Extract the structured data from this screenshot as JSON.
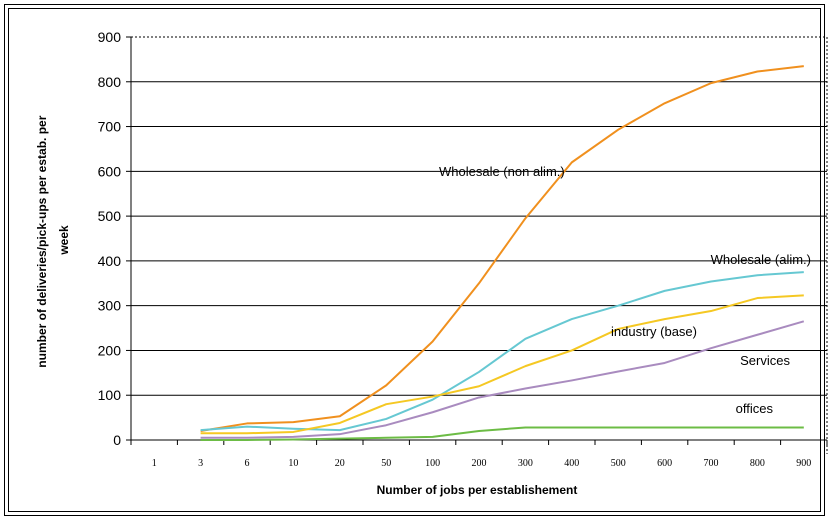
{
  "chart_data": {
    "type": "line",
    "xlabel": "Number of jobs per establishement",
    "ylabel": "number of deliveries/pick-ups per estab. per week",
    "ylabel_lines": [
      "number of deliveries/pick-ups per estab. per",
      "week"
    ],
    "ylim": [
      0,
      900
    ],
    "yticks": [
      "0",
      "100",
      "200",
      "300",
      "400",
      "500",
      "600",
      "700",
      "800",
      "900"
    ],
    "categories": [
      "1",
      "3",
      "6",
      "10",
      "20",
      "50",
      "100",
      "200",
      "300",
      "400",
      "500",
      "600",
      "700",
      "800",
      "900"
    ],
    "grid": "horizontal",
    "series": [
      {
        "name": "Wholesale (non alim.)",
        "color": "#f0901e",
        "values": [
          null,
          20,
          37,
          40,
          53,
          122,
          220,
          350,
          495,
          620,
          693,
          752,
          797,
          823,
          835
        ]
      },
      {
        "name": "Wholesale (alim.)",
        "color": "#66c8d2",
        "values": [
          null,
          22,
          30,
          25,
          22,
          47,
          90,
          152,
          226,
          270,
          300,
          333,
          354,
          368,
          375
        ]
      },
      {
        "name": "industry (base)",
        "color": "#f5c823",
        "values": [
          null,
          15,
          15,
          18,
          38,
          80,
          97,
          120,
          165,
          200,
          248,
          270,
          288,
          317,
          323
        ]
      },
      {
        "name": "Services",
        "color": "#a98bbf",
        "values": [
          null,
          5,
          5,
          7,
          13,
          33,
          62,
          95,
          115,
          133,
          153,
          172,
          205,
          235,
          265
        ]
      },
      {
        "name": "offices",
        "color": "#6cbc45",
        "values": [
          null,
          0,
          0,
          1,
          3,
          5,
          7,
          20,
          28,
          28,
          28,
          28,
          28,
          28,
          28
        ]
      }
    ],
    "annotations": [
      "Wholesale (non alim.)",
      "Wholesale (alim.)",
      "industry (base)",
      "Services",
      "offices"
    ]
  }
}
